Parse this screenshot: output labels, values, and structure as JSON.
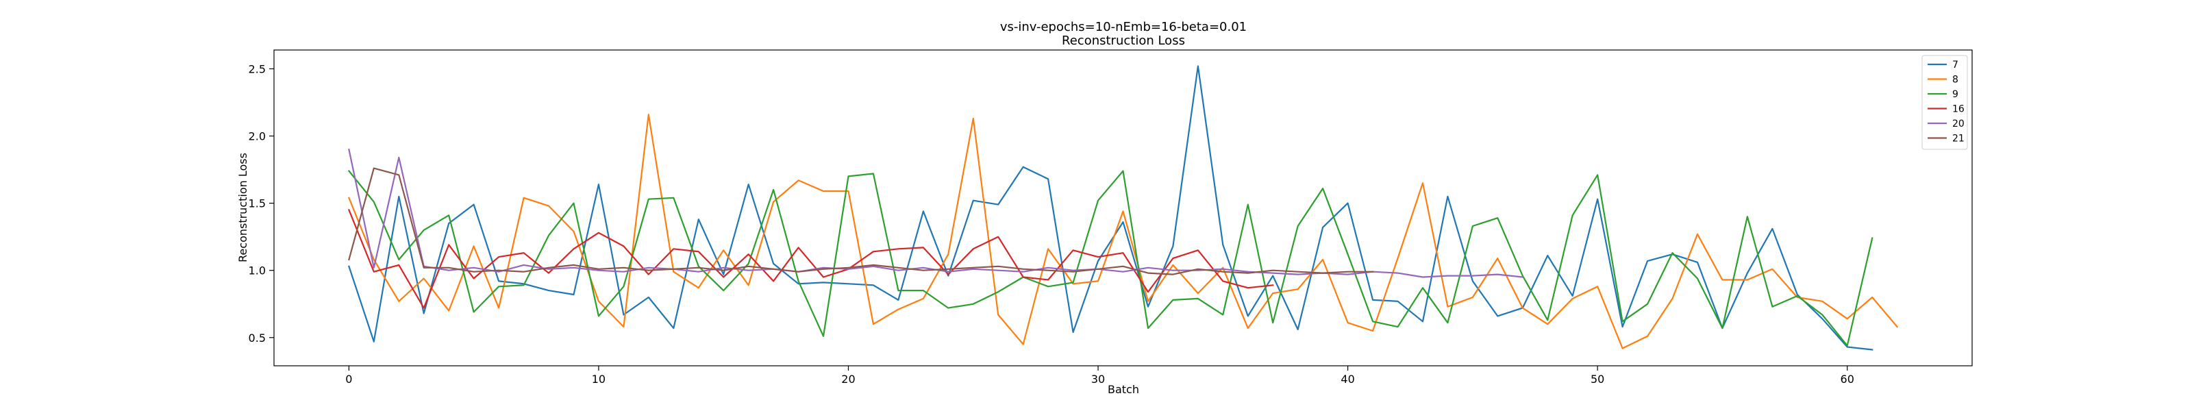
{
  "chart_data": {
    "type": "line",
    "title": "vs-inv-epochs=10-nEmb=16-beta=0.01",
    "subtitle": "Reconstruction Loss",
    "xlabel": "Batch",
    "ylabel": "Reconstruction Loss",
    "xlim": [
      -3,
      65
    ],
    "ylim": [
      0.29,
      2.64
    ],
    "xticks": [
      0,
      10,
      20,
      30,
      40,
      50,
      60
    ],
    "yticks": [
      0.5,
      1.0,
      1.5,
      2.0,
      2.5
    ],
    "ytick_labels": [
      "0.5",
      "1.0",
      "1.5",
      "2.0",
      "2.5"
    ],
    "grid": false,
    "legend_position": "top-right",
    "series": [
      {
        "name": "7",
        "color": "#1f77b4",
        "values": [
          1.03,
          0.47,
          1.55,
          0.68,
          1.35,
          1.49,
          0.92,
          0.9,
          0.85,
          0.82,
          1.64,
          0.67,
          0.8,
          0.57,
          1.38,
          0.97,
          1.64,
          1.05,
          0.9,
          0.91,
          0.9,
          0.89,
          0.78,
          1.44,
          0.96,
          1.52,
          1.49,
          1.77,
          1.68,
          0.54,
          1.07,
          1.36,
          0.73,
          1.18,
          2.52,
          1.19,
          0.66,
          0.96,
          0.56,
          1.32,
          1.5,
          0.78,
          0.77,
          0.62,
          1.55,
          0.92,
          0.66,
          0.72,
          1.11,
          0.81,
          1.53,
          0.58,
          1.07,
          1.12,
          1.06,
          0.57,
          0.98,
          1.31,
          0.82,
          0.64,
          0.43,
          0.41
        ]
      },
      {
        "name": "8",
        "color": "#ff7f0e",
        "values": [
          1.54,
          1.08,
          0.77,
          0.94,
          0.7,
          1.18,
          0.72,
          1.54,
          1.48,
          1.29,
          0.77,
          0.58,
          2.16,
          0.99,
          0.87,
          1.15,
          0.89,
          1.51,
          1.67,
          1.59,
          1.59,
          0.6,
          0.71,
          0.79,
          1.12,
          2.13,
          0.67,
          0.45,
          1.16,
          0.9,
          0.92,
          1.44,
          0.77,
          1.04,
          0.83,
          1.02,
          0.57,
          0.83,
          0.86,
          1.08,
          0.61,
          0.55,
          1.09,
          1.65,
          0.73,
          0.8,
          1.09,
          0.72,
          0.6,
          0.79,
          0.88,
          0.42,
          0.51,
          0.79,
          1.27,
          0.93,
          0.93,
          1.01,
          0.8,
          0.77,
          0.64,
          0.8,
          0.58
        ]
      },
      {
        "name": "9",
        "color": "#2ca02c",
        "values": [
          1.74,
          1.51,
          1.08,
          1.3,
          1.41,
          0.69,
          0.88,
          0.89,
          1.26,
          1.5,
          0.66,
          0.88,
          1.53,
          1.54,
          1.03,
          0.85,
          1.05,
          1.6,
          0.92,
          0.51,
          1.7,
          1.72,
          0.85,
          0.85,
          0.72,
          0.75,
          0.84,
          0.95,
          0.88,
          0.91,
          1.52,
          1.74,
          0.57,
          0.78,
          0.79,
          0.67,
          1.49,
          0.61,
          1.33,
          1.61,
          1.12,
          0.62,
          0.58,
          0.87,
          0.61,
          1.33,
          1.39,
          0.96,
          0.63,
          1.41,
          1.71,
          0.62,
          0.75,
          1.13,
          0.94,
          0.57,
          1.4,
          0.73,
          0.81,
          0.67,
          0.44,
          1.24
        ]
      },
      {
        "name": "16",
        "color": "#d62728",
        "values": [
          1.45,
          0.99,
          1.04,
          0.72,
          1.19,
          0.94,
          1.1,
          1.13,
          0.98,
          1.16,
          1.28,
          1.18,
          0.97,
          1.16,
          1.14,
          0.95,
          1.12,
          0.92,
          1.17,
          0.95,
          1.01,
          1.14,
          1.16,
          1.17,
          0.97,
          1.16,
          1.25,
          0.95,
          0.93,
          1.15,
          1.1,
          1.13,
          0.84,
          1.09,
          1.15,
          0.92,
          0.87,
          0.89
        ]
      },
      {
        "name": "20",
        "color": "#9467bd",
        "values": [
          1.9,
          1.02,
          1.84,
          1.03,
          1.0,
          1.02,
          0.99,
          1.04,
          1.01,
          1.02,
          1.0,
          0.99,
          1.02,
          1.01,
          0.99,
          1.02,
          1.0,
          1.01,
          0.99,
          1.02,
          1.01,
          1.03,
          1.0,
          1.02,
          0.99,
          1.01,
          1.0,
          0.99,
          1.02,
          1.0,
          1.01,
          0.99,
          1.02,
          1.0,
          1.0,
          1.01,
          0.99,
          0.98,
          0.97,
          0.98,
          0.97,
          0.99,
          0.98,
          0.95,
          0.96,
          0.96,
          0.97,
          0.95
        ]
      },
      {
        "name": "21",
        "color": "#8c564b",
        "values": [
          1.08,
          1.76,
          1.71,
          1.02,
          1.02,
          0.99,
          1.0,
          0.99,
          1.02,
          1.04,
          1.01,
          1.02,
          1.0,
          1.01,
          1.02,
          1.0,
          1.03,
          1.01,
          0.99,
          1.01,
          1.02,
          1.04,
          1.02,
          1.0,
          1.01,
          1.02,
          1.03,
          1.01,
          1.0,
          0.99,
          1.01,
          1.03,
          0.98,
          0.97,
          1.01,
          0.99,
          0.98,
          1.0,
          0.99,
          0.98,
          0.99,
          0.99
        ]
      }
    ]
  }
}
